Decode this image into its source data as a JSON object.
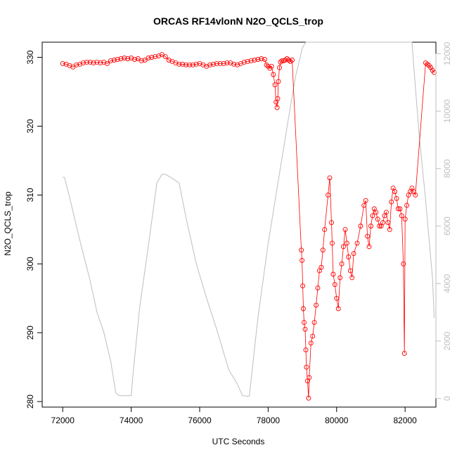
{
  "chart_data": {
    "type": "scatter",
    "title": "ORCAS RF14vlonN N2O_QCLS_trop",
    "xlabel": "UTC Seconds",
    "ylabel": "N2O_QCLS_trop",
    "xlim": [
      71400,
      82900
    ],
    "ylim": [
      279.2,
      332.2
    ],
    "y2lim": [
      -300,
      12400
    ],
    "x_ticks": [
      72000,
      74000,
      76000,
      78000,
      80000,
      82000
    ],
    "y_ticks": [
      280,
      290,
      300,
      310,
      320,
      330
    ],
    "y2_ticks": [
      0,
      2000,
      4000,
      6000,
      8000,
      10000,
      12000
    ],
    "grid": false,
    "colors": {
      "n2o": "#ff0000",
      "altitude": "#bebebe"
    },
    "series": [
      {
        "role": "n2o",
        "axis": "left",
        "style": "points+line",
        "x": [
          72000,
          72100,
          72200,
          72300,
          72400,
          72500,
          72600,
          72700,
          72800,
          72900,
          73000,
          73100,
          73200,
          73300,
          73400,
          73500,
          73600,
          73700,
          73800,
          73900,
          74000,
          74100,
          74200,
          74300,
          74400,
          74500,
          74600,
          74700,
          74800,
          74900,
          75000,
          75100,
          75200,
          75300,
          75400,
          75500,
          75600,
          75700,
          75800,
          75900,
          76000,
          76100,
          76200,
          76300,
          76400,
          76500,
          76600,
          76700,
          76800,
          76900,
          77000,
          77100,
          77200,
          77300,
          77400,
          77500,
          77600,
          77700,
          77800,
          77900,
          77950,
          78000,
          78050,
          78100,
          78150,
          78200,
          78230,
          78260,
          78280,
          78300,
          78330,
          78360,
          78400,
          78450,
          78500,
          78550,
          78600,
          78650,
          78700,
          78970,
          78990,
          79010,
          79030,
          79050,
          79080,
          79100,
          79120,
          79150,
          79180,
          79200,
          79250,
          79300,
          79350,
          79400,
          79450,
          79500,
          79550,
          79600,
          79650,
          79750,
          79800,
          79850,
          79870,
          79900,
          79950,
          80000,
          80050,
          80100,
          80150,
          80200,
          80250,
          80300,
          80350,
          80400,
          80450,
          80500,
          80600,
          80700,
          80800,
          80850,
          80900,
          80950,
          81000,
          81050,
          81100,
          81150,
          81200,
          81250,
          81300,
          81350,
          81400,
          81450,
          81500,
          81550,
          81600,
          81650,
          81700,
          81750,
          81800,
          81850,
          81900,
          81950,
          81980,
          82000,
          82050,
          82100,
          82150,
          82200,
          82250,
          82300,
          82600,
          82650,
          82700,
          82750,
          82800,
          82850
        ],
        "values": [
          329.1,
          329.0,
          328.8,
          328.6,
          328.9,
          329.0,
          329.2,
          329.3,
          329.3,
          329.2,
          329.3,
          329.2,
          329.3,
          329.1,
          329.5,
          329.6,
          329.7,
          329.8,
          329.9,
          329.8,
          329.9,
          329.7,
          329.8,
          329.5,
          329.6,
          329.9,
          330.0,
          330.1,
          330.2,
          330.4,
          330.1,
          329.6,
          329.4,
          329.2,
          329.0,
          329.0,
          328.9,
          328.9,
          328.9,
          329.0,
          329.1,
          328.9,
          328.7,
          328.9,
          329.0,
          329.1,
          329.1,
          329.1,
          329.2,
          329.2,
          329.0,
          328.9,
          329.1,
          329.3,
          329.4,
          329.5,
          329.6,
          329.7,
          329.8,
          329.7,
          328.9,
          328.7,
          328.4,
          328.7,
          327.5,
          326.0,
          323.5,
          322.7,
          324.0,
          326.5,
          328.5,
          329.3,
          329.5,
          329.5,
          329.6,
          329.8,
          329.6,
          329.4,
          329.6,
          302.0,
          300.5,
          296.8,
          293.5,
          291.5,
          290.5,
          287.5,
          285.0,
          283.0,
          280.5,
          283.5,
          288.5,
          289.5,
          291.5,
          294.0,
          296.5,
          299.0,
          299.5,
          302.0,
          305.0,
          310.0,
          312.5,
          306.0,
          303.0,
          298.5,
          297.0,
          295.0,
          293.5,
          298.0,
          300.0,
          302.5,
          305.0,
          303.0,
          301.0,
          299.0,
          298.0,
          301.5,
          303.0,
          305.5,
          308.5,
          309.2,
          304.0,
          302.5,
          305.5,
          307.0,
          308.0,
          307.5,
          306.5,
          305.5,
          305.5,
          306.0,
          307.0,
          307.5,
          306.0,
          305.0,
          309.0,
          311.0,
          310.5,
          309.5,
          308.0,
          308.0,
          307.0,
          300.0,
          287.0,
          306.5,
          308.5,
          310.0,
          310.5,
          311.0,
          310.5,
          310.0,
          329.2,
          329.0,
          328.8,
          328.5,
          328.1,
          327.8
        ]
      },
      {
        "role": "altitude",
        "axis": "right",
        "style": "line",
        "x": [
          72000,
          72050,
          72200,
          72500,
          72800,
          73000,
          73200,
          73400,
          73550,
          73650,
          74000,
          74050,
          74250,
          74500,
          74750,
          74900,
          75000,
          75150,
          75400,
          75600,
          75900,
          76200,
          76500,
          76850,
          77100,
          77250,
          77400,
          77450,
          77700,
          78000,
          78300,
          78600,
          78800,
          79000,
          79100,
          79500,
          80000,
          80500,
          81000,
          81500,
          82000,
          82200,
          82400,
          82600,
          82800,
          82850
        ],
        "values": [
          7700,
          7700,
          7000,
          5500,
          4100,
          3000,
          2300,
          1300,
          200,
          100,
          100,
          800,
          3200,
          5300,
          7500,
          7800,
          7800,
          7700,
          7500,
          6300,
          4700,
          3500,
          2400,
          1000,
          500,
          100,
          80,
          80,
          2800,
          5400,
          7600,
          9800,
          11200,
          12200,
          12400,
          12400,
          12400,
          12400,
          12400,
          12400,
          12400,
          12400,
          9300,
          6900,
          4200,
          2800
        ]
      }
    ]
  }
}
